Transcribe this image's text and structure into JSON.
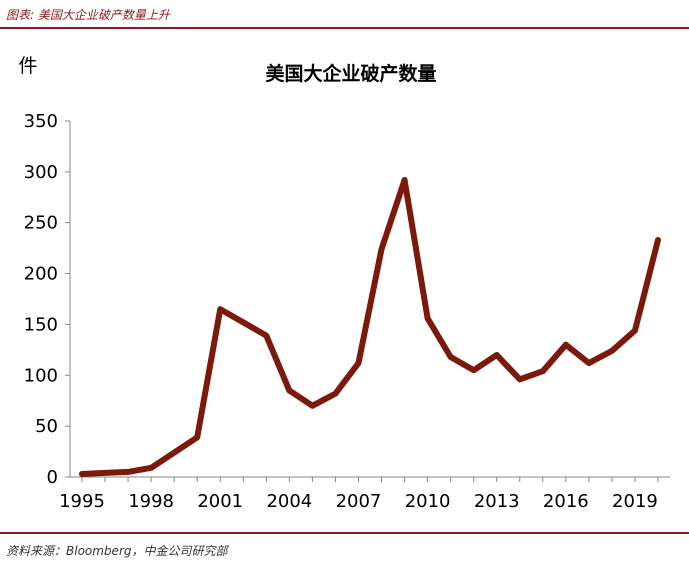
{
  "header": {
    "caption": "图表: 美国大企业破产数量上升"
  },
  "footer": {
    "source": "资料来源：Bloomberg，中金公司研究部"
  },
  "colors": {
    "accent": "#8b1a1a",
    "line": "#7b1a0c"
  },
  "chart_data": {
    "type": "line",
    "title": "美国大企业破产数量",
    "ylabel": "件",
    "xlabel": "",
    "ylim": [
      0,
      350
    ],
    "xlim": [
      1995,
      2020
    ],
    "xticks": [
      "1995",
      "1998",
      "2001",
      "2004",
      "2007",
      "2010",
      "2013",
      "2016",
      "2019"
    ],
    "yticks": [
      "350",
      "300",
      "250",
      "200",
      "150",
      "100",
      "50",
      "0"
    ],
    "grid": false,
    "legend": "none",
    "x": [
      1995,
      1996,
      1997,
      1998,
      1999,
      2000,
      2001,
      2002,
      2003,
      2004,
      2005,
      2006,
      2007,
      2008,
      2009,
      2010,
      2011,
      2012,
      2013,
      2014,
      2015,
      2016,
      2017,
      2018,
      2019,
      2020
    ],
    "series": [
      {
        "values": [
          3,
          4,
          5,
          9,
          24,
          39,
          165,
          152,
          139,
          85,
          70,
          82,
          112,
          224,
          292,
          156,
          118,
          105,
          120,
          96,
          104,
          130,
          112,
          124,
          144,
          233
        ]
      }
    ]
  }
}
